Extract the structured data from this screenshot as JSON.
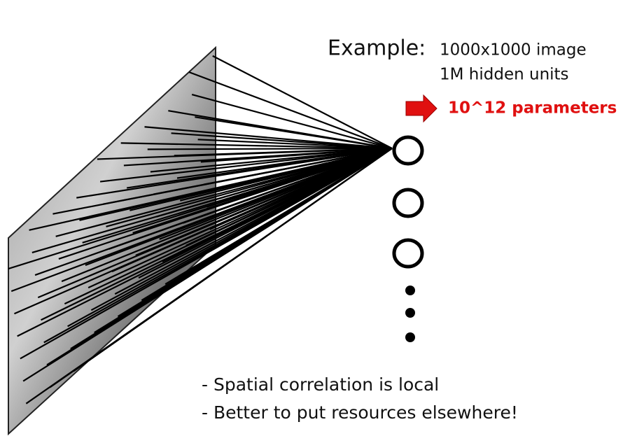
{
  "example": {
    "label": "Example:",
    "lines": [
      "1000x1000 image",
      "1M hidden units"
    ],
    "result": "10^12 parameters"
  },
  "notes": [
    "- Spatial correlation is local",
    "- Better to put resources elsewhere!"
  ]
}
